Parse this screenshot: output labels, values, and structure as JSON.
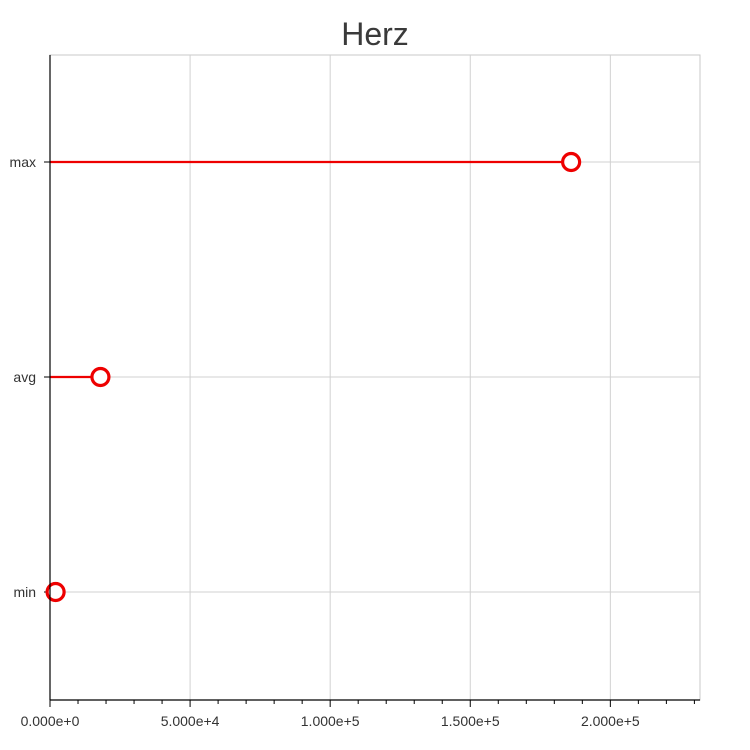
{
  "chart_data": {
    "type": "lollipop",
    "title": "Herz",
    "xlabel": "",
    "ylabel": "",
    "categories": [
      "max",
      "avg",
      "min"
    ],
    "values": [
      186000,
      18000,
      2000
    ],
    "xlim": [
      0,
      232000
    ],
    "xticks": [
      0,
      50000,
      100000,
      150000,
      200000
    ],
    "xtick_labels": [
      "0.000e+0",
      "5.000e+4",
      "1.000e+5",
      "1.500e+5",
      "2.000e+5"
    ],
    "grid": true,
    "color": "#ee0000"
  }
}
